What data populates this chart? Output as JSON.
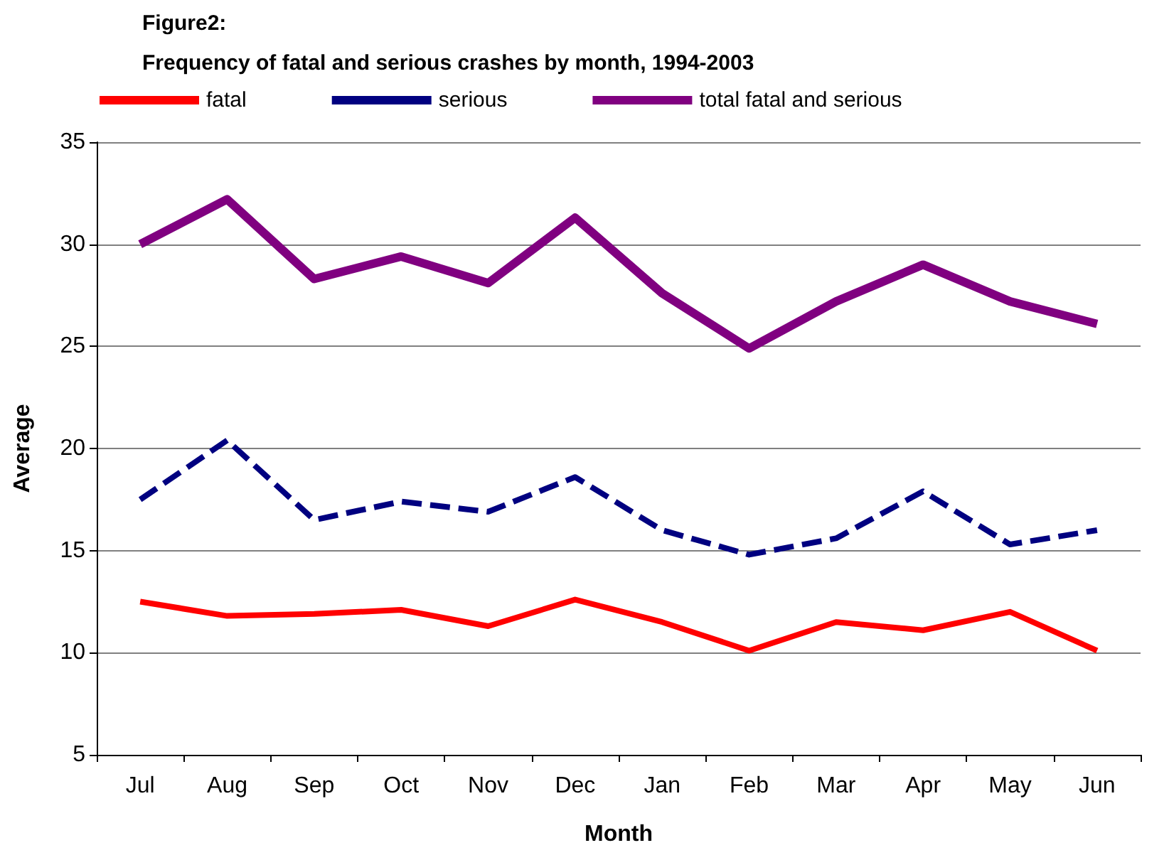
{
  "chart_data": {
    "type": "line",
    "title": "Figure2:",
    "subtitle": "Frequency of fatal and serious crashes by month, 1994-2003",
    "xlabel": "Month",
    "ylabel": "Average",
    "categories": [
      "Jul",
      "Aug",
      "Sep",
      "Oct",
      "Nov",
      "Dec",
      "Jan",
      "Feb",
      "Mar",
      "Apr",
      "May",
      "Jun"
    ],
    "series": [
      {
        "name": "fatal",
        "color": "#ff0000",
        "line_style": "solid",
        "values": [
          12.5,
          11.8,
          11.9,
          12.1,
          11.3,
          12.6,
          11.5,
          10.1,
          11.5,
          11.1,
          12.0,
          10.1
        ]
      },
      {
        "name": "serious",
        "color": "#000080",
        "line_style": "dashed",
        "values": [
          17.5,
          20.4,
          16.5,
          17.4,
          16.9,
          18.6,
          16.0,
          14.8,
          15.6,
          17.9,
          15.3,
          16.0
        ]
      },
      {
        "name": "total fatal and serious",
        "color": "#800080",
        "line_style": "solid",
        "values": [
          30.0,
          32.2,
          28.3,
          29.4,
          28.1,
          31.3,
          27.6,
          24.9,
          27.2,
          29.0,
          27.2,
          26.1
        ]
      }
    ],
    "ylim": [
      5,
      35
    ],
    "yticks": [
      5,
      10,
      15,
      20,
      25,
      30,
      35
    ],
    "grid": "y",
    "legend": "top",
    "marker": "none"
  }
}
